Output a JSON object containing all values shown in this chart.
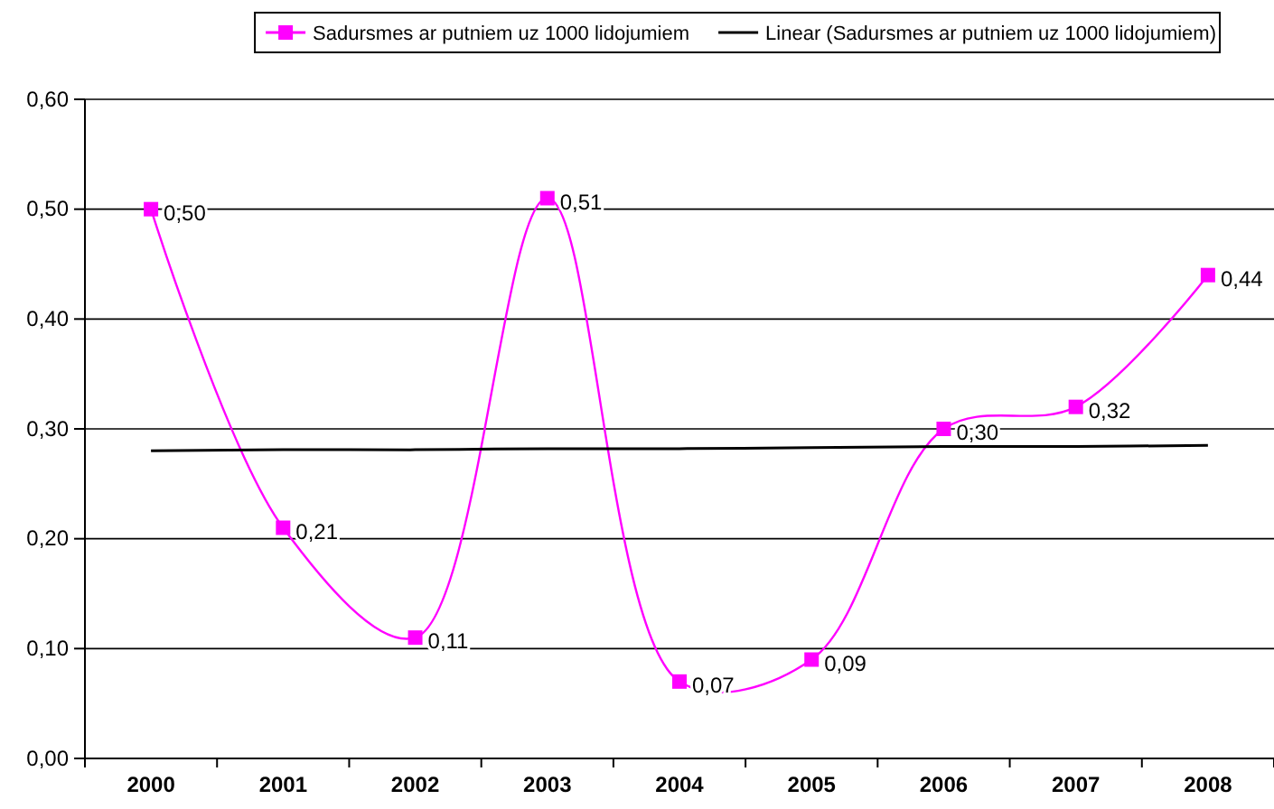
{
  "chart_data": {
    "type": "line",
    "categories": [
      "2000",
      "2001",
      "2002",
      "2003",
      "2004",
      "2005",
      "2006",
      "2007",
      "2008"
    ],
    "series": [
      {
        "name": "Sadursmes ar putniem uz 1000 lidojumiem",
        "color": "#ff00ff",
        "values": [
          0.5,
          0.21,
          0.11,
          0.51,
          0.07,
          0.09,
          0.3,
          0.32,
          0.44
        ],
        "value_labels": [
          "0,50",
          "0,21",
          "0,11",
          "0,51",
          "0,07",
          "0,09",
          "0,30",
          "0,32",
          "0,44"
        ],
        "marker": "square"
      },
      {
        "name": "Linear (Sadursmes ar putniem uz 1000 lidojumiem)",
        "color": "#000000",
        "type": "line",
        "values": [
          0.28,
          0.281,
          0.281,
          0.282,
          0.282,
          0.283,
          0.284,
          0.284,
          0.285
        ],
        "marker": "none"
      }
    ],
    "ylim": [
      0,
      0.6
    ],
    "yticks": [
      {
        "value": 0,
        "label": "0,00"
      },
      {
        "value": 0.1,
        "label": "0,10"
      },
      {
        "value": 0.2,
        "label": "0,20"
      },
      {
        "value": 0.3,
        "label": "0,30"
      },
      {
        "value": 0.4,
        "label": "0,40"
      },
      {
        "value": 0.5,
        "label": "0,50"
      },
      {
        "value": 0.6,
        "label": "0,60"
      }
    ],
    "grid": "y",
    "legend": "top"
  }
}
